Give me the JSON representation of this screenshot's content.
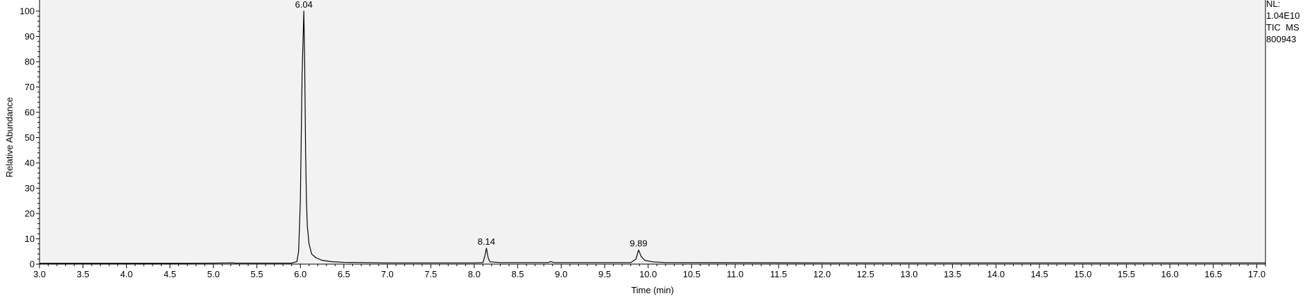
{
  "header": {
    "nl_label": "NL:",
    "nl_value": "1.04E10",
    "scan_type": "TIC  MS",
    "sample_id": "800943"
  },
  "chart_data": {
    "type": "line",
    "title": "",
    "xlabel": "Time (min)",
    "ylabel": "Relative Abundance",
    "xlim": [
      3.0,
      17.1
    ],
    "ylim": [
      0,
      100
    ],
    "x_ticks": [
      "3.0",
      "3.5",
      "4.0",
      "4.5",
      "5.0",
      "5.5",
      "6.0",
      "6.5",
      "7.0",
      "7.5",
      "8.0",
      "8.5",
      "9.0",
      "9.5",
      "10.0",
      "10.5",
      "11.0",
      "11.5",
      "12.0",
      "12.5",
      "13.0",
      "13.5",
      "14.0",
      "14.5",
      "15.0",
      "15.5",
      "16.0",
      "16.5",
      "17.0"
    ],
    "y_ticks": [
      "0",
      "10",
      "20",
      "30",
      "40",
      "50",
      "60",
      "70",
      "80",
      "90",
      "100"
    ],
    "grid": false,
    "colors": {
      "line": "#000000",
      "plot_background": "#f2f2f2"
    },
    "peaks": [
      {
        "label": "6.04",
        "x": 6.04,
        "y": 100
      },
      {
        "label": "8.14",
        "x": 8.14,
        "y": 6.3
      },
      {
        "label": "9.89",
        "x": 9.89,
        "y": 5.6
      }
    ],
    "series": [
      {
        "values": [
          [
            3.0,
            0.3
          ],
          [
            4.5,
            0.3
          ],
          [
            5.0,
            0.4
          ],
          [
            5.22,
            0.5
          ],
          [
            5.25,
            0.4
          ],
          [
            5.9,
            0.4
          ],
          [
            5.96,
            1.0
          ],
          [
            5.98,
            5.0
          ],
          [
            6.0,
            25.0
          ],
          [
            6.02,
            75.0
          ],
          [
            6.04,
            100.0
          ],
          [
            6.05,
            78.0
          ],
          [
            6.06,
            45.0
          ],
          [
            6.07,
            25.0
          ],
          [
            6.08,
            15.0
          ],
          [
            6.1,
            8.0
          ],
          [
            6.13,
            4.0
          ],
          [
            6.18,
            2.5
          ],
          [
            6.25,
            1.5
          ],
          [
            6.35,
            1.0
          ],
          [
            6.5,
            0.7
          ],
          [
            7.0,
            0.5
          ],
          [
            8.0,
            0.5
          ],
          [
            8.1,
            0.6
          ],
          [
            8.12,
            3.0
          ],
          [
            8.14,
            6.3
          ],
          [
            8.16,
            2.5
          ],
          [
            8.18,
            0.9
          ],
          [
            8.3,
            0.6
          ],
          [
            8.85,
            0.6
          ],
          [
            8.88,
            1.0
          ],
          [
            8.92,
            0.6
          ],
          [
            9.8,
            0.6
          ],
          [
            9.86,
            2.0
          ],
          [
            9.89,
            5.6
          ],
          [
            9.92,
            3.0
          ],
          [
            9.96,
            1.5
          ],
          [
            10.05,
            0.9
          ],
          [
            10.2,
            0.6
          ],
          [
            12.0,
            0.5
          ],
          [
            17.1,
            0.5
          ]
        ]
      }
    ]
  }
}
